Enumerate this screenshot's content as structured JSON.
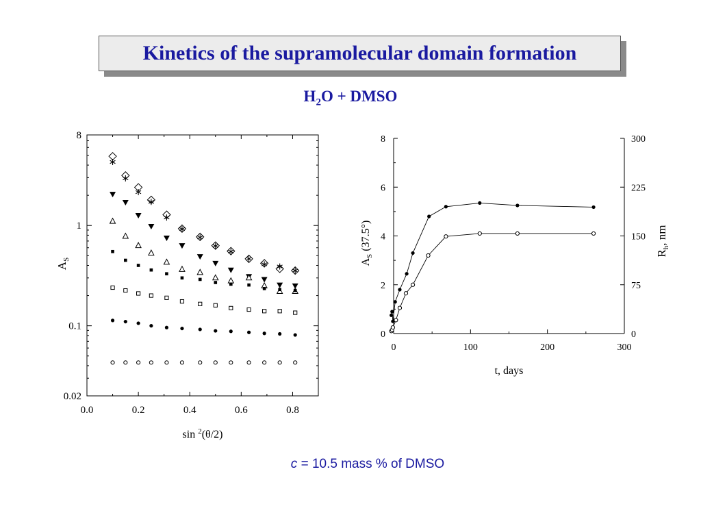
{
  "slide": {
    "title": "Kinetics of the supramolecular domain formation",
    "subtitle": {
      "pre": "H",
      "sub": "2",
      "post": "O + DMSO"
    },
    "footnote": {
      "var": "c",
      "rest": " = 10.5 mass % of DMSO"
    }
  },
  "chart_data": [
    {
      "type": "scatter",
      "title": "",
      "xlabel": {
        "pre": "sin ",
        "sup": "2",
        "post": "(θ/2)"
      },
      "ylabel": {
        "main": "A",
        "sub": "S"
      },
      "xlim": [
        0.0,
        0.9
      ],
      "ylim": [
        0.02,
        8
      ],
      "yscale": "log",
      "xticks": [
        0.0,
        0.2,
        0.4,
        0.6,
        0.8
      ],
      "xtick_labels": [
        "0.0",
        "0.2",
        "0.4",
        "0.6",
        "0.8"
      ],
      "yticks": [
        8,
        1,
        0.1,
        0.02
      ],
      "ytick_labels": [
        "8",
        "1",
        "0.1",
        "0.02"
      ],
      "x": [
        0.1,
        0.15,
        0.2,
        0.25,
        0.31,
        0.37,
        0.44,
        0.5,
        0.56,
        0.63,
        0.69,
        0.75,
        0.81
      ],
      "series": [
        {
          "marker": "diamond-open",
          "values": [
            4.9,
            3.15,
            2.4,
            1.8,
            1.28,
            0.93,
            0.77,
            0.63,
            0.555,
            0.465,
            0.42,
            0.37,
            0.355
          ]
        },
        {
          "marker": "asterisk",
          "values": [
            4.3,
            2.95,
            2.15,
            1.72,
            1.2,
            0.92,
            0.76,
            0.625,
            0.55,
            0.465,
            0.41,
            0.39,
            0.355
          ]
        },
        {
          "marker": "triangle-down-filled",
          "values": [
            2.05,
            1.7,
            1.26,
            0.98,
            0.75,
            0.63,
            0.49,
            0.42,
            0.36,
            0.31,
            0.29,
            0.255,
            0.25
          ]
        },
        {
          "marker": "triangle-up-open",
          "values": [
            1.1,
            0.78,
            0.63,
            0.53,
            0.43,
            0.365,
            0.34,
            0.3,
            0.28,
            0.3,
            0.25,
            0.22,
            0.22
          ]
        },
        {
          "marker": "square-filled",
          "values": [
            0.55,
            0.45,
            0.4,
            0.36,
            0.33,
            0.3,
            0.29,
            0.27,
            0.26,
            0.255,
            0.235,
            0.23,
            0.225
          ]
        },
        {
          "marker": "square-open",
          "values": [
            0.24,
            0.225,
            0.21,
            0.2,
            0.19,
            0.175,
            0.165,
            0.16,
            0.15,
            0.145,
            0.14,
            0.14,
            0.135
          ]
        },
        {
          "marker": "circle-filled",
          "values": [
            0.113,
            0.11,
            0.106,
            0.1,
            0.096,
            0.094,
            0.092,
            0.089,
            0.088,
            0.086,
            0.084,
            0.083,
            0.081
          ]
        },
        {
          "marker": "circle-open",
          "values": [
            0.043,
            0.043,
            0.043,
            0.043,
            0.043,
            0.043,
            0.043,
            0.043,
            0.043,
            0.043,
            0.043,
            0.043,
            0.043
          ]
        }
      ]
    },
    {
      "type": "line",
      "title": "",
      "xlabel": "t, days",
      "ylabel_left": {
        "pre": "A",
        "sub": "S",
        "post": " (37.5°)"
      },
      "ylabel_right": {
        "pre": "R",
        "sub": "h",
        "post": ", nm"
      },
      "xlim": [
        0,
        300
      ],
      "ylim_left": [
        0,
        8
      ],
      "ylim_right": [
        0,
        300
      ],
      "xticks": [
        0,
        100,
        200,
        300
      ],
      "xtick_labels": [
        "0",
        "100",
        "200",
        "300"
      ],
      "yticks_left": [
        0,
        2,
        4,
        6,
        8
      ],
      "ytick_labels_left": [
        "0",
        "2",
        "4",
        "6",
        "8"
      ],
      "yticks_right": [
        0,
        75,
        150,
        225,
        300
      ],
      "ytick_labels_right": [
        "0",
        "75",
        "150",
        "225",
        "300"
      ],
      "series": [
        {
          "marker": "circle-filled",
          "axis": "left",
          "x": [
            -3,
            -2,
            -1,
            2,
            8,
            17,
            25,
            46,
            68,
            112,
            161,
            260
          ],
          "y": [
            0.75,
            0.9,
            0.5,
            1.3,
            1.8,
            2.45,
            3.3,
            4.8,
            5.2,
            5.35,
            5.25,
            5.18
          ]
        },
        {
          "marker": "circle-open",
          "axis": "left",
          "x": [
            -3,
            -2,
            -1,
            3,
            8,
            16,
            25,
            45,
            68,
            112,
            161,
            260
          ],
          "y": [
            0.1,
            0.15,
            0.25,
            0.55,
            1.05,
            1.65,
            2.0,
            3.2,
            3.98,
            4.1,
            4.1,
            4.1
          ]
        }
      ]
    }
  ]
}
